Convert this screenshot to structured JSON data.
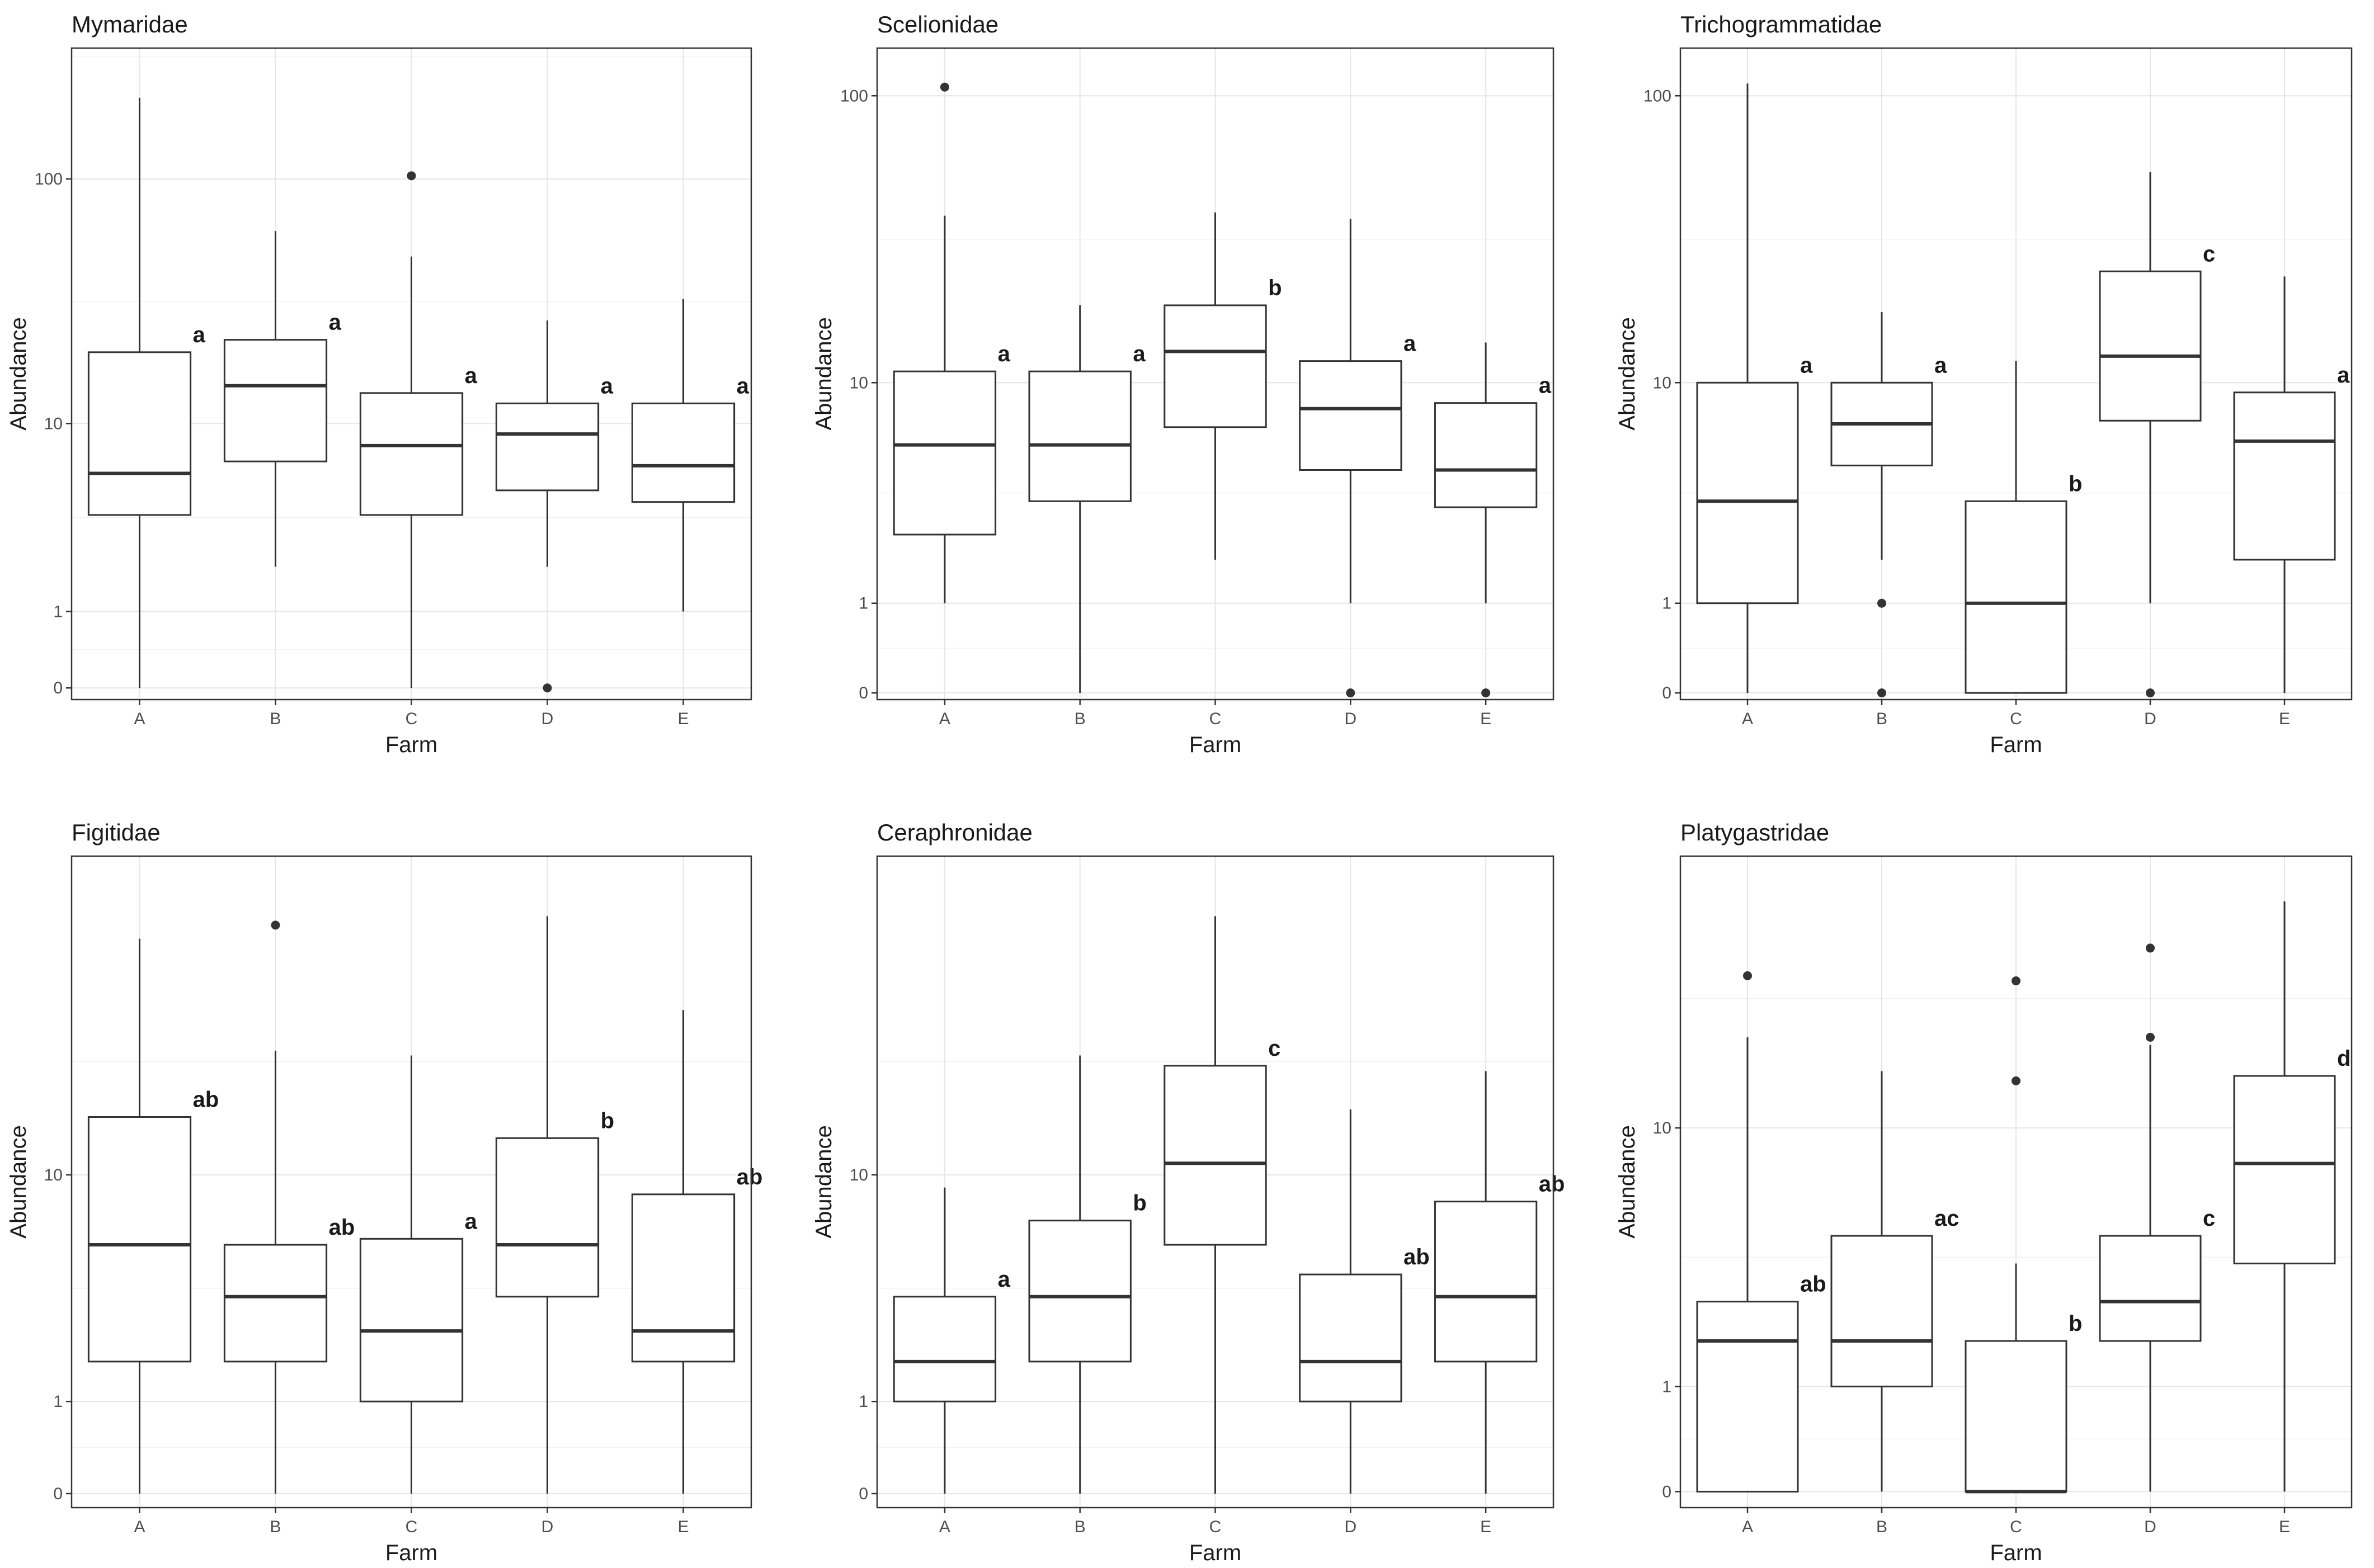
{
  "chart_data": [
    {
      "type": "boxplot",
      "title": "Mymaridae",
      "xlabel": "Farm",
      "ylabel": "Abundance",
      "yscale": "log1p",
      "y_ticks": [
        0,
        1,
        10,
        100
      ],
      "ylim": [
        -0.1,
        330
      ],
      "categories": [
        "A",
        "B",
        "C",
        "D",
        "E"
      ],
      "boxes": [
        {
          "min": 0,
          "q1": 3.8,
          "median": 6.0,
          "q3": 20,
          "max": 210,
          "outliers": [],
          "label": "a"
        },
        {
          "min": 2.0,
          "q1": 6.8,
          "median": 14.5,
          "q3": 22.5,
          "max": 62,
          "outliers": [],
          "label": "a"
        },
        {
          "min": 0,
          "q1": 3.8,
          "median": 8.0,
          "q3": 13.5,
          "max": 49,
          "outliers": [
            103
          ],
          "label": "a"
        },
        {
          "min": 2.0,
          "q1": 5.0,
          "median": 9.0,
          "q3": 12.2,
          "max": 27,
          "outliers": [
            0
          ],
          "label": "a"
        },
        {
          "min": 1,
          "q1": 4.4,
          "median": 6.5,
          "q3": 12.2,
          "max": 33,
          "outliers": [],
          "label": "a"
        }
      ]
    },
    {
      "type": "boxplot",
      "title": "Scelionidae",
      "xlabel": "Farm",
      "ylabel": "Abundance",
      "yscale": "log1p",
      "y_ticks": [
        0,
        1,
        10,
        100
      ],
      "ylim": [
        -0.05,
        145
      ],
      "categories": [
        "A",
        "B",
        "C",
        "D",
        "E"
      ],
      "boxes": [
        {
          "min": 1,
          "q1": 2.4,
          "median": 5.8,
          "q3": 11.0,
          "max": 39,
          "outliers": [
            107
          ],
          "label": "a"
        },
        {
          "min": 0,
          "q1": 3.4,
          "median": 5.8,
          "q3": 11.0,
          "max": 19,
          "outliers": [],
          "label": "a"
        },
        {
          "min": 1.8,
          "q1": 6.8,
          "median": 13.0,
          "q3": 19.0,
          "max": 40,
          "outliers": [],
          "label": "b"
        },
        {
          "min": 1,
          "q1": 4.6,
          "median": 8.0,
          "q3": 12.0,
          "max": 38,
          "outliers": [
            0
          ],
          "label": "a"
        },
        {
          "min": 1,
          "q1": 3.2,
          "median": 4.6,
          "q3": 8.4,
          "max": 14,
          "outliers": [
            0
          ],
          "label": "a"
        }
      ]
    },
    {
      "type": "boxplot",
      "title": "Trichogrammatidae",
      "xlabel": "Farm",
      "ylabel": "Abundance",
      "yscale": "log1p",
      "y_ticks": [
        0,
        1,
        10,
        100
      ],
      "ylim": [
        -0.05,
        145
      ],
      "categories": [
        "A",
        "B",
        "C",
        "D",
        "E"
      ],
      "boxes": [
        {
          "min": 0,
          "q1": 1,
          "median": 3.4,
          "q3": 10,
          "max": 110,
          "outliers": [],
          "label": "a"
        },
        {
          "min": 1.8,
          "q1": 4.8,
          "median": 7.0,
          "q3": 10,
          "max": 18,
          "outliers": [
            1,
            0
          ],
          "label": "a"
        },
        {
          "min": 0,
          "q1": 0,
          "median": 1,
          "q3": 3.4,
          "max": 12,
          "outliers": [],
          "label": "b"
        },
        {
          "min": 1,
          "q1": 7.2,
          "median": 12.5,
          "q3": 25,
          "max": 55,
          "outliers": [
            0
          ],
          "label": "c"
        },
        {
          "min": 0,
          "q1": 1.8,
          "median": 6.0,
          "q3": 9.2,
          "max": 24,
          "outliers": [],
          "label": "a"
        }
      ]
    },
    {
      "type": "boxplot",
      "title": "Figitidae",
      "xlabel": "Farm",
      "ylabel": "Abundance",
      "yscale": "log1p",
      "y_ticks": [
        0,
        1,
        10
      ],
      "ylim": [
        -0.1,
        120
      ],
      "categories": [
        "A",
        "B",
        "C",
        "D",
        "E"
      ],
      "boxes": [
        {
          "min": 0,
          "q1": 1.7,
          "median": 5.5,
          "q3": 16,
          "max": 64,
          "outliers": [],
          "label": "ab"
        },
        {
          "min": 0,
          "q1": 1.7,
          "median": 3.4,
          "q3": 5.5,
          "max": 27,
          "outliers": [
            71
          ],
          "label": "ab"
        },
        {
          "min": 0,
          "q1": 1,
          "median": 2.4,
          "q3": 5.8,
          "max": 26,
          "outliers": [],
          "label": "a"
        },
        {
          "min": 0,
          "q1": 3.4,
          "median": 5.5,
          "q3": 13.5,
          "max": 76,
          "outliers": [],
          "label": "b"
        },
        {
          "min": 0,
          "q1": 1.7,
          "median": 2.4,
          "q3": 8.5,
          "max": 37,
          "outliers": [],
          "label": "ab"
        }
      ]
    },
    {
      "type": "boxplot",
      "title": "Ceraphronidae",
      "xlabel": "Farm",
      "ylabel": "Abundance",
      "yscale": "log1p",
      "y_ticks": [
        0,
        1,
        10
      ],
      "ylim": [
        -0.1,
        120
      ],
      "categories": [
        "A",
        "B",
        "C",
        "D",
        "E"
      ],
      "boxes": [
        {
          "min": 0,
          "q1": 1,
          "median": 1.7,
          "q3": 3.4,
          "max": 9,
          "outliers": [],
          "label": "a"
        },
        {
          "min": 0,
          "q1": 1.7,
          "median": 3.4,
          "q3": 6.8,
          "max": 26,
          "outliers": [],
          "label": "b"
        },
        {
          "min": 0,
          "q1": 5.5,
          "median": 11.0,
          "q3": 24,
          "max": 76,
          "outliers": [],
          "label": "c"
        },
        {
          "min": 0,
          "q1": 1,
          "median": 1.7,
          "q3": 4.2,
          "max": 17,
          "outliers": [],
          "label": "ab"
        },
        {
          "min": 0,
          "q1": 1.7,
          "median": 3.4,
          "q3": 8.0,
          "max": 23,
          "outliers": [],
          "label": "ab"
        }
      ]
    },
    {
      "type": "boxplot",
      "title": "Platygastridae",
      "xlabel": "Farm",
      "ylabel": "Abundance",
      "yscale": "log1p",
      "y_ticks": [
        0,
        1,
        10
      ],
      "ylim": [
        -0.1,
        65
      ],
      "categories": [
        "A",
        "B",
        "C",
        "D",
        "E"
      ],
      "boxes": [
        {
          "min": 0,
          "q1": 0,
          "median": 1.7,
          "q3": 2.5,
          "max": 19,
          "outliers": [
            29
          ],
          "label": "ab"
        },
        {
          "min": 0,
          "q1": 1,
          "median": 1.7,
          "q3": 4.4,
          "max": 15,
          "outliers": [],
          "label": "ac"
        },
        {
          "min": 0,
          "q1": 0,
          "median": 0,
          "q3": 1.7,
          "max": 3.5,
          "outliers": [
            28,
            14
          ],
          "label": "b"
        },
        {
          "min": 0,
          "q1": 1.7,
          "median": 2.5,
          "q3": 4.4,
          "max": 18,
          "outliers": [
            35,
            19
          ],
          "label": "c"
        },
        {
          "min": 0,
          "q1": 3.5,
          "median": 7.7,
          "q3": 14.5,
          "max": 48,
          "outliers": [],
          "label": "d"
        }
      ]
    }
  ]
}
